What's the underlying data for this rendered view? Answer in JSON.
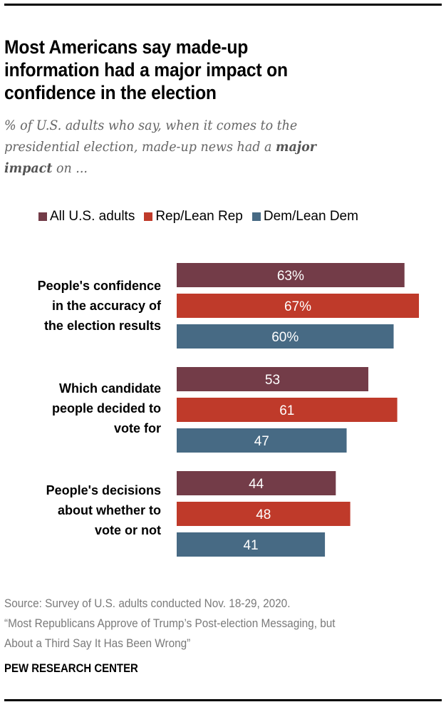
{
  "title_lines": [
    "Most Americans say made-up",
    "information had a major impact on",
    "confidence in the election"
  ],
  "subtitle": {
    "line1": "% of U.S. adults who say, when it comes to the",
    "line2_pre": "presidential election, made-up news had a ",
    "line2_bold": "major",
    "line3_bold": "impact",
    "line3_post": " on ..."
  },
  "source_lines": [
    "Source: Survey of U.S. adults conducted Nov. 18-29, 2020.",
    "“Most Republicans Approve of Trump’s Post-election Messaging, but",
    "About a Third Say It Has Been Wrong”"
  ],
  "brand": "PEW RESEARCH CENTER",
  "chart_data": {
    "type": "bar",
    "orientation": "horizontal",
    "title": "Most Americans say made-up information had a major impact on confidence in the election",
    "subtitle": "% of U.S. adults who say, when it comes to the presidential election, made-up news had a major impact on ...",
    "xlabel": "",
    "ylabel": "",
    "xlim": [
      0,
      100
    ],
    "grid": false,
    "legend": "top",
    "categories": [
      "People's confidence in the accuracy of the election results",
      "Which candidate people decided to vote for",
      "People's decisions about whether to vote or not"
    ],
    "category_lines": [
      [
        "People's confidence",
        "in the accuracy of",
        "the election results"
      ],
      [
        "Which candidate",
        "people decided to",
        "vote for"
      ],
      [
        "People's decisions",
        "about whether to",
        "vote or not"
      ]
    ],
    "series": [
      {
        "name": "All U.S. adults",
        "color": "#733c48",
        "values": [
          63,
          53,
          44
        ],
        "labels": [
          "63%",
          "53",
          "44"
        ]
      },
      {
        "name": "Rep/Lean Rep",
        "color": "#bf3a2a",
        "values": [
          67,
          61,
          48
        ],
        "labels": [
          "67%",
          "61",
          "48"
        ]
      },
      {
        "name": "Dem/Lean Dem",
        "color": "#476a84",
        "values": [
          60,
          47,
          41
        ],
        "labels": [
          "60%",
          "47",
          "41"
        ]
      }
    ]
  }
}
